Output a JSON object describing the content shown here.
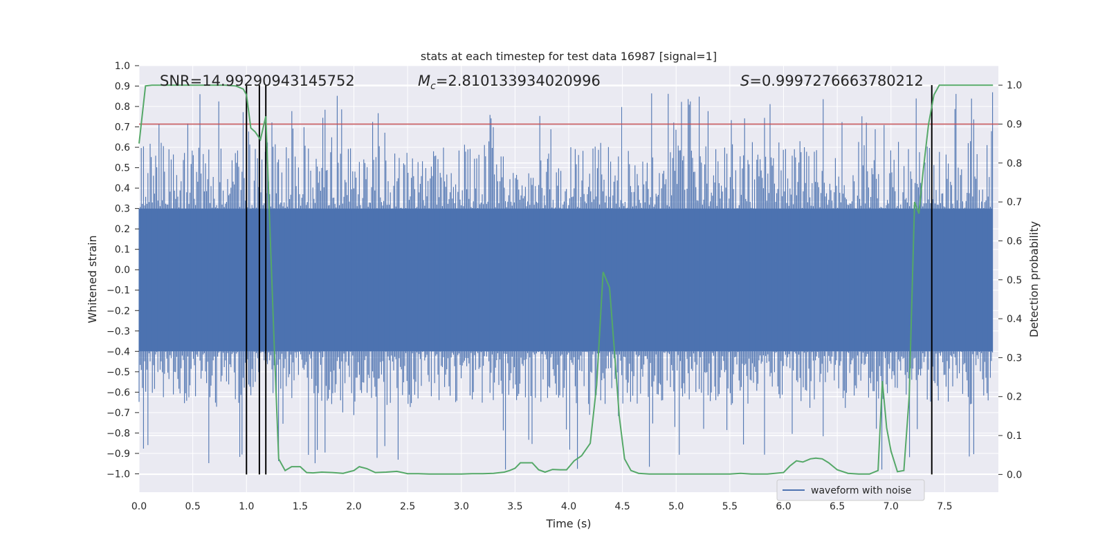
{
  "chart_data": {
    "type": "line",
    "title": "stats at each timestep for test data 16987 [signal=1]",
    "xlabel": "Time (s)",
    "ylabel": "Whitened strain",
    "y2label": "Detection probability",
    "xlim": [
      0.0,
      8.0
    ],
    "ylim": [
      -1.09,
      1.0
    ],
    "y2lim": [
      -0.0455,
      1.05
    ],
    "xticks": [
      "0.0",
      "0.5",
      "1.0",
      "1.5",
      "2.0",
      "2.5",
      "3.0",
      "3.5",
      "4.0",
      "4.5",
      "5.0",
      "5.5",
      "6.0",
      "6.5",
      "7.0",
      "7.5"
    ],
    "yticks": [
      "1.0",
      "0.9",
      "0.8",
      "0.7",
      "0.6",
      "0.5",
      "0.4",
      "0.3",
      "0.2",
      "0.1",
      "0.0",
      "−0.1",
      "−0.2",
      "−0.3",
      "−0.4",
      "−0.5",
      "−0.6",
      "−0.7",
      "−0.8",
      "−0.9",
      "−1.0"
    ],
    "y2ticks": [
      "1.0",
      "0.9",
      "0.8",
      "0.7",
      "0.6",
      "0.5",
      "0.4",
      "0.3",
      "0.2",
      "0.1",
      "0.0"
    ],
    "annotations": {
      "snr": "SNR=14.99290943145752",
      "mc_prefix": "M",
      "mc_sub": "c",
      "mc_value": "=2.810133934020996",
      "s_prefix": "S",
      "s_value": "=0.9997276663780212"
    },
    "threshold": {
      "value": 0.9,
      "color": "#c44e52"
    },
    "vlines": [
      1.0,
      1.12,
      1.18,
      7.38
    ],
    "series": [
      {
        "name": "waveform with noise",
        "axis": "left",
        "color": "#4c72b0",
        "envelope": {
          "core_upper": 0.3,
          "core_lower": -0.4,
          "max_peak": 0.87,
          "min_trough": -1.0
        }
      },
      {
        "name": "detection probability",
        "axis": "right",
        "color": "#55a868",
        "x": [
          0.0,
          0.06,
          0.12,
          0.25,
          0.4,
          0.6,
          0.8,
          0.9,
          0.97,
          1.0,
          1.04,
          1.08,
          1.13,
          1.18,
          1.22,
          1.26,
          1.3,
          1.36,
          1.42,
          1.5,
          1.56,
          1.62,
          1.7,
          1.8,
          1.9,
          2.0,
          2.05,
          2.12,
          2.2,
          2.3,
          2.4,
          2.5,
          2.6,
          2.7,
          2.8,
          2.9,
          3.0,
          3.1,
          3.2,
          3.3,
          3.4,
          3.45,
          3.5,
          3.55,
          3.6,
          3.66,
          3.72,
          3.78,
          3.85,
          3.92,
          3.98,
          4.05,
          4.12,
          4.2,
          4.26,
          4.32,
          4.38,
          4.43,
          4.47,
          4.52,
          4.58,
          4.65,
          4.75,
          4.85,
          4.95,
          5.05,
          5.2,
          5.35,
          5.5,
          5.6,
          5.7,
          5.85,
          6.0,
          6.06,
          6.12,
          6.18,
          6.25,
          6.3,
          6.36,
          6.42,
          6.5,
          6.6,
          6.7,
          6.8,
          6.88,
          6.92,
          6.96,
          7.0,
          7.06,
          7.12,
          7.17,
          7.22,
          7.26,
          7.3,
          7.35,
          7.4,
          7.45,
          7.5,
          7.6,
          7.75,
          7.95
        ],
        "values": [
          0.85,
          0.998,
          1.0,
          1.0,
          1.0,
          1.0,
          1.0,
          0.998,
          0.99,
          0.975,
          0.89,
          0.88,
          0.86,
          0.92,
          0.62,
          0.32,
          0.04,
          0.01,
          0.02,
          0.02,
          0.005,
          0.004,
          0.006,
          0.005,
          0.003,
          0.01,
          0.02,
          0.015,
          0.005,
          0.006,
          0.008,
          0.002,
          0.002,
          0.001,
          0.001,
          0.001,
          0.001,
          0.002,
          0.002,
          0.003,
          0.006,
          0.01,
          0.016,
          0.03,
          0.03,
          0.03,
          0.012,
          0.006,
          0.013,
          0.012,
          0.012,
          0.035,
          0.048,
          0.08,
          0.23,
          0.52,
          0.48,
          0.3,
          0.15,
          0.04,
          0.01,
          0.003,
          0.001,
          0.001,
          0.001,
          0.001,
          0.001,
          0.001,
          0.001,
          0.003,
          0.001,
          0.001,
          0.005,
          0.022,
          0.035,
          0.032,
          0.04,
          0.042,
          0.04,
          0.03,
          0.012,
          0.003,
          0.001,
          0.001,
          0.01,
          0.24,
          0.12,
          0.06,
          0.007,
          0.01,
          0.2,
          0.7,
          0.67,
          0.78,
          0.9,
          0.975,
          1.0,
          1.0,
          1.0,
          1.0,
          1.0
        ]
      }
    ],
    "legend": {
      "label": "waveform with noise",
      "placement": "lower-right"
    }
  }
}
